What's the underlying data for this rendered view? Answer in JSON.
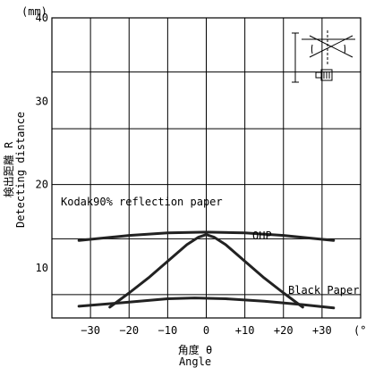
{
  "chart_data": {
    "type": "line",
    "unit_label": "(mm)",
    "unit_label_x": "(°)",
    "ylabel_jp": "検出距離 R",
    "ylabel_en": "Detecting distance",
    "xlabel_jp": "角度 θ",
    "xlabel_en": "Angle",
    "xlim": [
      -40,
      40
    ],
    "ylim": [
      4,
      40
    ],
    "x_ticks": [
      -30,
      -20,
      -10,
      0,
      10,
      20,
      30
    ],
    "x_tick_labels": [
      "−30",
      "−20",
      "−10",
      "0",
      "+10",
      "+20",
      "+30"
    ],
    "y_ticks": [
      10,
      20,
      30,
      40
    ],
    "y_tick_labels": [
      "10",
      "20",
      "30",
      "40"
    ],
    "y_gridlines": [
      6.8,
      13.5,
      20,
      26.7,
      33.5
    ],
    "grid": true,
    "series": [
      {
        "name": "Kodak90% reflection paper",
        "x": [
          -33,
          -20,
          -10,
          0,
          10,
          20,
          33
        ],
        "y": [
          13.3,
          13.9,
          14.2,
          14.3,
          14.2,
          13.9,
          13.3
        ]
      },
      {
        "name": "OHP",
        "x": [
          -25,
          -20,
          -15,
          -10,
          -5,
          -2,
          0,
          2,
          5,
          10,
          15,
          20,
          25
        ],
        "y": [
          5.3,
          7,
          8.8,
          10.8,
          12.8,
          13.7,
          14,
          13.7,
          12.8,
          10.8,
          8.8,
          7,
          5.3
        ]
      },
      {
        "name": "Black Paper",
        "x": [
          -33,
          -20,
          -10,
          -3,
          5,
          15,
          25,
          33
        ],
        "y": [
          5.4,
          5.9,
          6.3,
          6.4,
          6.3,
          6.0,
          5.6,
          5.2
        ]
      }
    ]
  }
}
